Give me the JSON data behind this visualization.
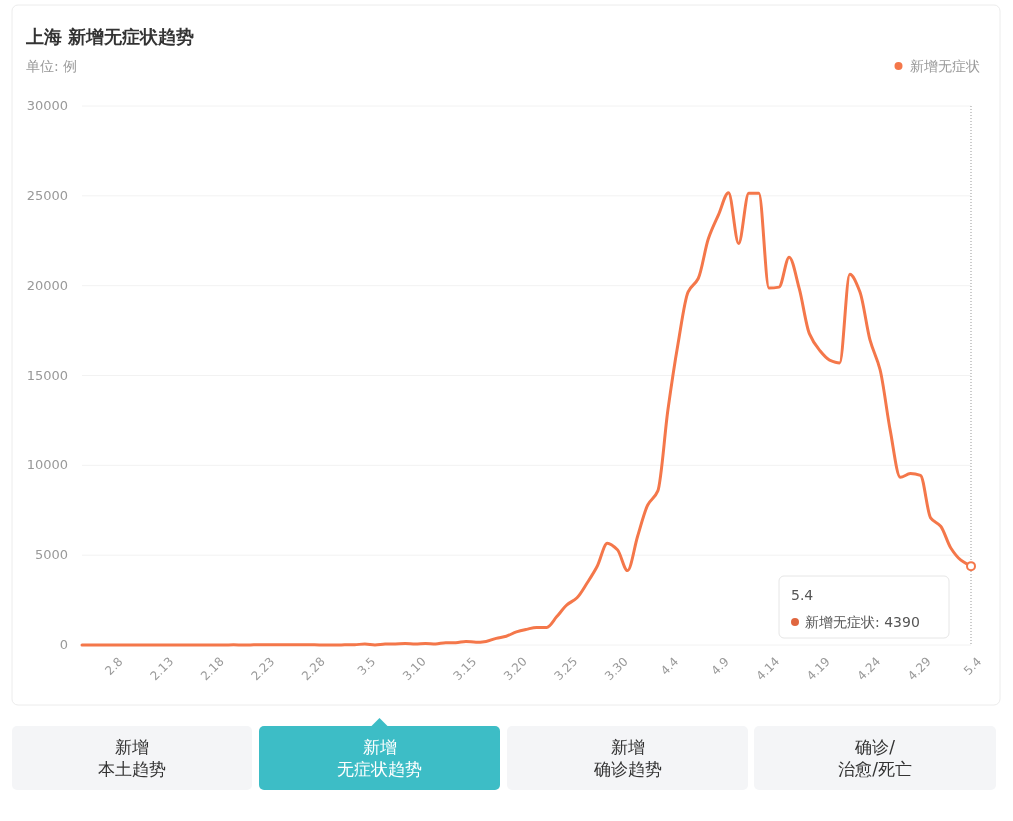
{
  "chart_data": {
    "type": "line",
    "title": "上海 新增无症状趋势",
    "subtitle": "单位: 例",
    "categories": [
      null,
      null,
      null,
      "2.8",
      null,
      null,
      null,
      null,
      "2.13",
      null,
      null,
      null,
      null,
      "2.18",
      null,
      null,
      null,
      null,
      "2.23",
      null,
      null,
      null,
      null,
      "2.28",
      null,
      null,
      null,
      null,
      "3.5",
      null,
      null,
      null,
      null,
      "3.10",
      null,
      null,
      null,
      null,
      "3.15",
      null,
      null,
      null,
      null,
      "3.20",
      null,
      null,
      null,
      null,
      "3.25",
      null,
      null,
      null,
      null,
      "3.30",
      null,
      null,
      null,
      null,
      "4.4",
      null,
      null,
      null,
      null,
      "4.9",
      null,
      null,
      null,
      null,
      "4.14",
      null,
      null,
      null,
      null,
      "4.19",
      null,
      null,
      null,
      null,
      "4.24",
      null,
      null,
      null,
      null,
      "4.29",
      null,
      null,
      null,
      null,
      "5.4"
    ],
    "series": [
      {
        "name": "新增无症状",
        "color": "#f4774a",
        "values": [
          0,
          0,
          0,
          0,
          0,
          0,
          0,
          0,
          0,
          0,
          0,
          0,
          0,
          0,
          0,
          10,
          0,
          10,
          20,
          10,
          20,
          10,
          10,
          10,
          0,
          0,
          10,
          20,
          50,
          0,
          50,
          60,
          80,
          60,
          80,
          60,
          130,
          130,
          200,
          150,
          200,
          370,
          490,
          730,
          870,
          980,
          980,
          1580,
          2230,
          2630,
          3450,
          4380,
          5660,
          5300,
          4140,
          6050,
          7790,
          8580,
          13090,
          16770,
          19660,
          20400,
          22610,
          23940,
          25170,
          22350,
          25140,
          25150,
          19870,
          19920,
          21580,
          19830,
          17330,
          16410,
          15860,
          15700,
          20630,
          19660,
          16980,
          15320,
          11960,
          9330,
          9540,
          9440,
          7080,
          6610,
          5400,
          4720,
          4390
        ]
      }
    ],
    "ylim": [
      0,
      30000
    ],
    "yticks": [
      0,
      5000,
      10000,
      15000,
      20000,
      25000,
      30000
    ],
    "grid": "y",
    "legend": "top right",
    "annotations": [
      "5.4",
      "新增无症状: 4390",
      "新增",
      "本土趋势",
      "新增",
      "无症状趋势",
      "新增",
      "确诊趋势",
      "确诊/",
      "治愈/死亡"
    ]
  }
}
